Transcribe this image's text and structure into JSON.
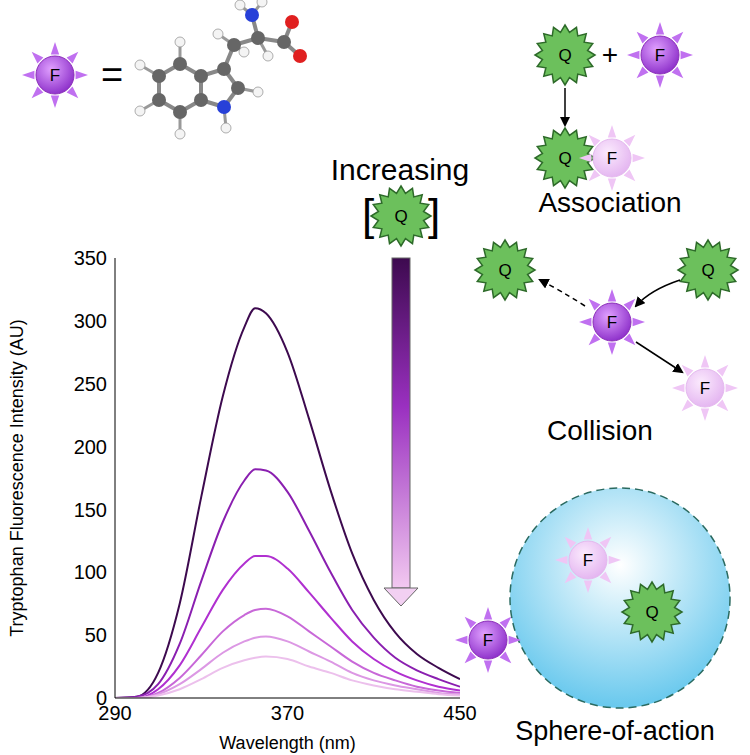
{
  "chart_data": {
    "type": "line",
    "xlabel": "Wavelength (nm)",
    "ylabel": "Tryptophan Fluorescence Intensity (AU)",
    "x": [
      290,
      300,
      310,
      320,
      330,
      340,
      350,
      355,
      360,
      370,
      380,
      390,
      400,
      410,
      420,
      430,
      440,
      450
    ],
    "xlim": [
      290,
      450
    ],
    "xticks": [
      290,
      370,
      450
    ],
    "ylim": [
      0,
      350
    ],
    "yticks": [
      0,
      50,
      100,
      150,
      200,
      250,
      300,
      350
    ],
    "grid": false,
    "series": [
      {
        "color": "#3d0a4f",
        "values": [
          0,
          1,
          20,
          75,
          160,
          240,
          295,
          310,
          306,
          275,
          222,
          165,
          115,
          78,
          52,
          35,
          24,
          15
        ]
      },
      {
        "color": "#8a1fb0",
        "values": [
          0,
          1,
          11,
          43,
          93,
          140,
          173,
          182,
          181,
          164,
          133,
          100,
          70,
          48,
          32,
          22,
          15,
          9
        ]
      },
      {
        "color": "#b030d0",
        "values": [
          0,
          0,
          7,
          26,
          56,
          86,
          107,
          113,
          113,
          103,
          84,
          64,
          45,
          31,
          21,
          14,
          9,
          6
        ]
      },
      {
        "color": "#c868d8",
        "values": [
          0,
          0,
          4,
          16,
          34,
          53,
          66,
          70,
          71,
          65,
          53,
          41,
          29,
          20,
          14,
          9,
          6,
          4
        ]
      },
      {
        "color": "#dc98e4",
        "values": [
          0,
          0,
          3,
          11,
          23,
          36,
          45,
          48,
          49,
          45,
          37,
          29,
          20,
          14,
          10,
          7,
          4,
          3
        ]
      },
      {
        "color": "#ecc0ec",
        "values": [
          0,
          0,
          2,
          7,
          15,
          24,
          30,
          32,
          33,
          31,
          25,
          20,
          14,
          10,
          7,
          5,
          3,
          2
        ]
      }
    ]
  },
  "diagram": {
    "fluorophore": "F",
    "quencher": "Q",
    "equals": "=",
    "plus": "+",
    "gradient_label": "Increasing",
    "bracket_open": "[",
    "bracket_close": "]",
    "mechanisms": [
      "Association",
      "Collision",
      "Sphere-of-action"
    ]
  }
}
